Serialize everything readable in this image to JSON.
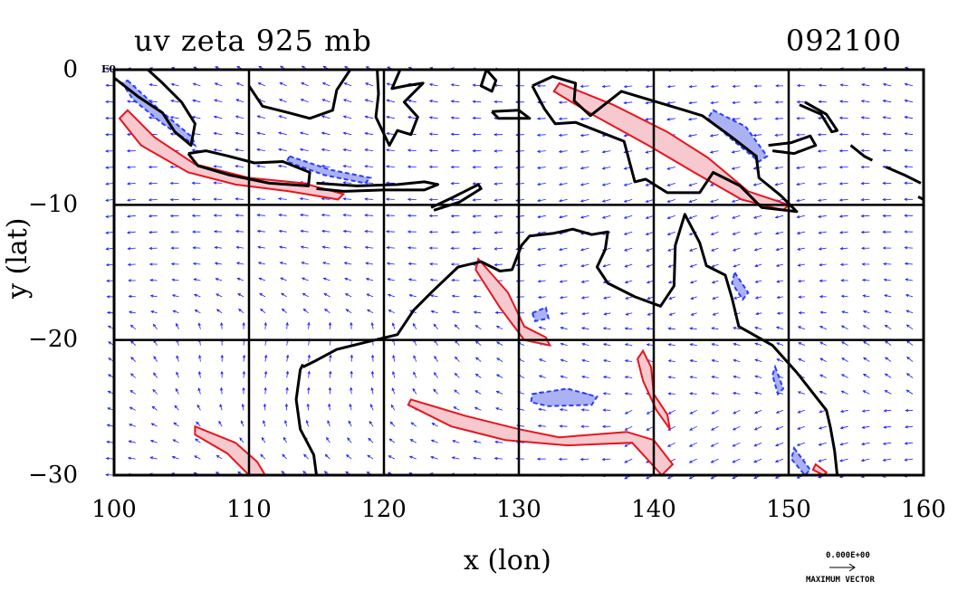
{
  "title": "uv zeta 925 mb",
  "stamp": "092100",
  "corner_label": "E0",
  "reference": {
    "value_label": "0.000E+00",
    "label": "MAXIMUM VECTOR"
  },
  "chart_data": {
    "type": "vector_field_map",
    "xlabel": "x (lon)",
    "ylabel": "y (lat)",
    "xlim": [
      100,
      160
    ],
    "ylim": [
      -30,
      0
    ],
    "xticks": [
      100,
      110,
      120,
      130,
      140,
      150,
      160
    ],
    "yticks": [
      0,
      -10,
      -20,
      -30
    ],
    "xtick_labels": [
      "100",
      "110",
      "120",
      "130",
      "140",
      "150",
      "160"
    ],
    "ytick_labels": [
      "0",
      "−10",
      "−20",
      "−30"
    ],
    "grid": true,
    "colors": {
      "vectors": "#1a1aff",
      "positive_contour": "#e8141c",
      "positive_fill": "#f6c9cf",
      "negative_contour": "#2a3cff",
      "negative_fill": "#aab2f4",
      "coast": "#000000"
    },
    "positive_regions": [
      {
        "name": "java-coast",
        "path": [
          [
            101,
            -3
          ],
          [
            103,
            -5
          ],
          [
            106,
            -7
          ],
          [
            110,
            -8
          ],
          [
            114,
            -8.4
          ],
          [
            117,
            -9.2
          ],
          [
            116.6,
            -9.6
          ],
          [
            113,
            -9
          ],
          [
            109,
            -8.5
          ],
          [
            105.5,
            -7.6
          ],
          [
            102,
            -5.6
          ],
          [
            100.4,
            -3.6
          ]
        ]
      },
      {
        "name": "png-coast",
        "path": [
          [
            133,
            -1
          ],
          [
            137,
            -2.6
          ],
          [
            141,
            -4.6
          ],
          [
            144,
            -6.5
          ],
          [
            147,
            -9
          ],
          [
            150,
            -10
          ],
          [
            149.6,
            -10.4
          ],
          [
            146.5,
            -9.6
          ],
          [
            143,
            -7.6
          ],
          [
            139.6,
            -5.6
          ],
          [
            135.6,
            -3.4
          ],
          [
            132.6,
            -1.6
          ]
        ]
      },
      {
        "name": "timor-arafura",
        "path": [
          [
            127,
            -14
          ],
          [
            129.2,
            -16.5
          ],
          [
            130.4,
            -19
          ],
          [
            132,
            -19.8
          ],
          [
            132.3,
            -20.4
          ],
          [
            130.4,
            -20
          ],
          [
            128.6,
            -17.6
          ],
          [
            126.8,
            -14.8
          ]
        ]
      },
      {
        "name": "inland-band",
        "path": [
          [
            122,
            -24.4
          ],
          [
            126,
            -25.6
          ],
          [
            130,
            -26.6
          ],
          [
            133,
            -27.2
          ],
          [
            138,
            -26.8
          ],
          [
            140,
            -27.4
          ],
          [
            141.4,
            -29.2
          ],
          [
            140.6,
            -30
          ],
          [
            138.4,
            -27.6
          ],
          [
            133.6,
            -27.8
          ],
          [
            129,
            -27.4
          ],
          [
            125,
            -26.4
          ],
          [
            121.8,
            -24.8
          ]
        ]
      },
      {
        "name": "gulf-band",
        "path": [
          [
            139.2,
            -20.8
          ],
          [
            139.8,
            -22
          ],
          [
            140,
            -24
          ],
          [
            141,
            -25.5
          ],
          [
            141.2,
            -26.6
          ],
          [
            140.2,
            -25.2
          ],
          [
            139.2,
            -23
          ],
          [
            138.8,
            -21.4
          ]
        ]
      },
      {
        "name": "southwest-band",
        "path": [
          [
            106,
            -26.4
          ],
          [
            109,
            -27.6
          ],
          [
            110.6,
            -29
          ],
          [
            111.2,
            -30
          ],
          [
            110,
            -30
          ],
          [
            108.4,
            -28.4
          ],
          [
            106,
            -27
          ]
        ]
      },
      {
        "name": "se-coast",
        "path": [
          [
            152,
            -29.2
          ],
          [
            152.8,
            -29.8
          ],
          [
            152.6,
            -30
          ],
          [
            151.8,
            -29.6
          ]
        ]
      }
    ],
    "negative_regions": [
      {
        "name": "sumatra-coast",
        "path": [
          [
            101,
            -0.8
          ],
          [
            103.4,
            -3
          ],
          [
            105.8,
            -5
          ],
          [
            106,
            -5.6
          ],
          [
            103.6,
            -4
          ],
          [
            101.4,
            -2.2
          ],
          [
            100.6,
            -1
          ]
        ]
      },
      {
        "name": "java-north",
        "path": [
          [
            113,
            -6.4
          ],
          [
            116,
            -7.4
          ],
          [
            119,
            -8
          ],
          [
            118.6,
            -8.4
          ],
          [
            115.6,
            -7.8
          ],
          [
            112.8,
            -6.8
          ]
        ]
      },
      {
        "name": "png-highlands",
        "path": [
          [
            144.4,
            -3
          ],
          [
            146.8,
            -4.2
          ],
          [
            148.4,
            -6.4
          ],
          [
            147.8,
            -6.8
          ],
          [
            145.6,
            -5
          ],
          [
            144,
            -3.6
          ]
        ]
      },
      {
        "name": "gulf-blob",
        "path": [
          [
            131,
            -24
          ],
          [
            133.6,
            -23.6
          ],
          [
            135.8,
            -24.2
          ],
          [
            135.4,
            -24.8
          ],
          [
            132.2,
            -24.9
          ],
          [
            130.9,
            -24.6
          ]
        ]
      },
      {
        "name": "nt-blob",
        "path": [
          [
            131,
            -18
          ],
          [
            132,
            -17.6
          ],
          [
            132.2,
            -18.4
          ],
          [
            131.2,
            -18.6
          ]
        ]
      },
      {
        "name": "coral-coast",
        "path": [
          [
            146,
            -15
          ],
          [
            147,
            -16.5
          ],
          [
            146.6,
            -17
          ],
          [
            145.8,
            -15.8
          ]
        ]
      },
      {
        "name": "qld-coast",
        "path": [
          [
            149,
            -22
          ],
          [
            149.6,
            -23.6
          ],
          [
            149.2,
            -24
          ],
          [
            148.8,
            -22.6
          ]
        ]
      },
      {
        "name": "nsw-coast",
        "path": [
          [
            150.4,
            -28
          ],
          [
            151.6,
            -29.6
          ],
          [
            151.2,
            -30
          ],
          [
            150.2,
            -28.8
          ]
        ]
      }
    ],
    "coastlines": [
      {
        "name": "australia",
        "path": [
          [
            114,
            -22
          ],
          [
            115,
            -21.5
          ],
          [
            116.5,
            -20.7
          ],
          [
            118.5,
            -20.2
          ],
          [
            121,
            -19.6
          ],
          [
            122.2,
            -17.8
          ],
          [
            123.6,
            -16.4
          ],
          [
            125.5,
            -14.6
          ],
          [
            127.2,
            -14.2
          ],
          [
            128.6,
            -14.9
          ],
          [
            129.5,
            -14.8
          ],
          [
            130.2,
            -13
          ],
          [
            130.8,
            -12.3
          ],
          [
            132.6,
            -12.1
          ],
          [
            134,
            -11.8
          ],
          [
            135.4,
            -12.2
          ],
          [
            136.6,
            -12
          ],
          [
            136.4,
            -13.3
          ],
          [
            135.8,
            -14.6
          ],
          [
            136.6,
            -15.8
          ],
          [
            138.6,
            -16.8
          ],
          [
            140.5,
            -17.5
          ],
          [
            141.5,
            -16
          ],
          [
            141.6,
            -13
          ],
          [
            142.3,
            -10.7
          ],
          [
            143.4,
            -12.8
          ],
          [
            143.9,
            -14.5
          ],
          [
            145.3,
            -15.2
          ],
          [
            145.8,
            -16.9
          ],
          [
            146.3,
            -19
          ],
          [
            148.8,
            -20.4
          ],
          [
            150.6,
            -22.4
          ],
          [
            152.8,
            -25.2
          ],
          [
            153.1,
            -26.5
          ],
          [
            153.4,
            -28.2
          ],
          [
            153.6,
            -30
          ]
        ]
      },
      {
        "name": "australia-west",
        "path": [
          [
            115,
            -30
          ],
          [
            114.8,
            -28.5
          ],
          [
            113.8,
            -26.6
          ],
          [
            113.5,
            -24.4
          ],
          [
            113.8,
            -22.2
          ],
          [
            114,
            -21.8
          ]
        ]
      },
      {
        "name": "sumatra",
        "path": [
          [
            100,
            -0.6
          ],
          [
            101.8,
            -2
          ],
          [
            103.6,
            -3.2
          ],
          [
            104.5,
            -4.6
          ],
          [
            105.7,
            -5.6
          ],
          [
            106,
            -4
          ],
          [
            105,
            -2.4
          ],
          [
            103.6,
            -1
          ],
          [
            102.5,
            0
          ]
        ]
      },
      {
        "name": "java",
        "path": [
          [
            105.5,
            -6.2
          ],
          [
            106.8,
            -6
          ],
          [
            108.5,
            -6.4
          ],
          [
            110.4,
            -6.9
          ],
          [
            112.5,
            -6.8
          ],
          [
            114.5,
            -7.6
          ],
          [
            114.4,
            -8.6
          ],
          [
            111.5,
            -8.4
          ],
          [
            108.6,
            -7.8
          ],
          [
            106.2,
            -7.1
          ],
          [
            105.5,
            -6.2
          ]
        ]
      },
      {
        "name": "lesser-sunda",
        "path": [
          [
            115,
            -8.4
          ],
          [
            118,
            -8.6
          ],
          [
            121,
            -8.5
          ],
          [
            123,
            -8.3
          ],
          [
            124,
            -8.5
          ],
          [
            123,
            -8.9
          ],
          [
            120,
            -8.9
          ],
          [
            117,
            -9
          ],
          [
            115,
            -8.8
          ]
        ]
      },
      {
        "name": "timor",
        "path": [
          [
            123.5,
            -10.2
          ],
          [
            125,
            -9.5
          ],
          [
            127,
            -8.5
          ],
          [
            127.2,
            -8.8
          ],
          [
            125.6,
            -9.8
          ],
          [
            123.7,
            -10.4
          ]
        ]
      },
      {
        "name": "borneo",
        "path": [
          [
            110,
            -1.2
          ],
          [
            111,
            -2.7
          ],
          [
            113,
            -3.2
          ],
          [
            114.5,
            -3.6
          ],
          [
            116.2,
            -3
          ],
          [
            116.5,
            -1.5
          ],
          [
            117.5,
            0
          ]
        ]
      },
      {
        "name": "sulawesi",
        "path": [
          [
            119.5,
            0
          ],
          [
            119.6,
            -1.8
          ],
          [
            119.4,
            -3.5
          ],
          [
            120.4,
            -5.6
          ],
          [
            121,
            -4.5
          ],
          [
            122,
            -4.8
          ],
          [
            122.5,
            -3.5
          ],
          [
            121.5,
            -2.4
          ],
          [
            122.9,
            -1
          ],
          [
            121.6,
            -1.2
          ],
          [
            120.6,
            -1.4
          ],
          [
            121.2,
            0
          ]
        ]
      },
      {
        "name": "halmahera",
        "path": [
          [
            127.6,
            0
          ],
          [
            128.3,
            -0.8
          ],
          [
            128,
            -1.6
          ],
          [
            127.2,
            -1.2
          ],
          [
            127.6,
            0
          ]
        ]
      },
      {
        "name": "seram",
        "path": [
          [
            128,
            -3.1
          ],
          [
            130,
            -3
          ],
          [
            130.8,
            -3.6
          ],
          [
            128.5,
            -3.6
          ],
          [
            128,
            -3.1
          ]
        ]
      },
      {
        "name": "new-guinea",
        "path": [
          [
            131,
            -1.2
          ],
          [
            132.5,
            -0.5
          ],
          [
            134.2,
            -1
          ],
          [
            134.1,
            -2.3
          ],
          [
            135.3,
            -3.4
          ],
          [
            137.6,
            -1.6
          ],
          [
            140.6,
            -2.5
          ],
          [
            143.6,
            -3.4
          ],
          [
            145.8,
            -5
          ],
          [
            147.6,
            -6.4
          ],
          [
            147.8,
            -8
          ],
          [
            149.4,
            -9.3
          ],
          [
            150.6,
            -10.5
          ],
          [
            148,
            -10.2
          ],
          [
            146.4,
            -8.6
          ],
          [
            144.4,
            -7.6
          ],
          [
            143.4,
            -9.1
          ],
          [
            141,
            -9.1
          ],
          [
            139.4,
            -8.1
          ],
          [
            138.6,
            -8.3
          ],
          [
            137.8,
            -5.3
          ],
          [
            136,
            -4.6
          ],
          [
            134.2,
            -3.9
          ],
          [
            132.7,
            -4
          ],
          [
            131.9,
            -2.9
          ],
          [
            131,
            -1.2
          ]
        ]
      },
      {
        "name": "new-britain",
        "path": [
          [
            148.5,
            -5.6
          ],
          [
            150.2,
            -5.4
          ],
          [
            151.6,
            -4.9
          ],
          [
            152,
            -5.6
          ],
          [
            150.4,
            -6.2
          ],
          [
            148.8,
            -6
          ]
        ]
      },
      {
        "name": "new-ireland",
        "path": [
          [
            150.8,
            -2.6
          ],
          [
            152.4,
            -3.3
          ],
          [
            153.2,
            -4.6
          ],
          [
            153.6,
            -4.5
          ],
          [
            152.8,
            -3.3
          ],
          [
            151.2,
            -2.4
          ]
        ]
      },
      {
        "name": "solomons",
        "path": [
          [
            154.6,
            -5.6
          ],
          [
            155.6,
            -6.4
          ],
          [
            156.2,
            -6.7
          ]
        ]
      },
      {
        "name": "solomons-2",
        "path": [
          [
            157.2,
            -7.2
          ],
          [
            158.6,
            -7.8
          ],
          [
            159.8,
            -8.4
          ]
        ]
      },
      {
        "name": "solomons-3",
        "path": [
          [
            159.6,
            -9.4
          ],
          [
            160,
            -9.6
          ]
        ]
      }
    ]
  }
}
